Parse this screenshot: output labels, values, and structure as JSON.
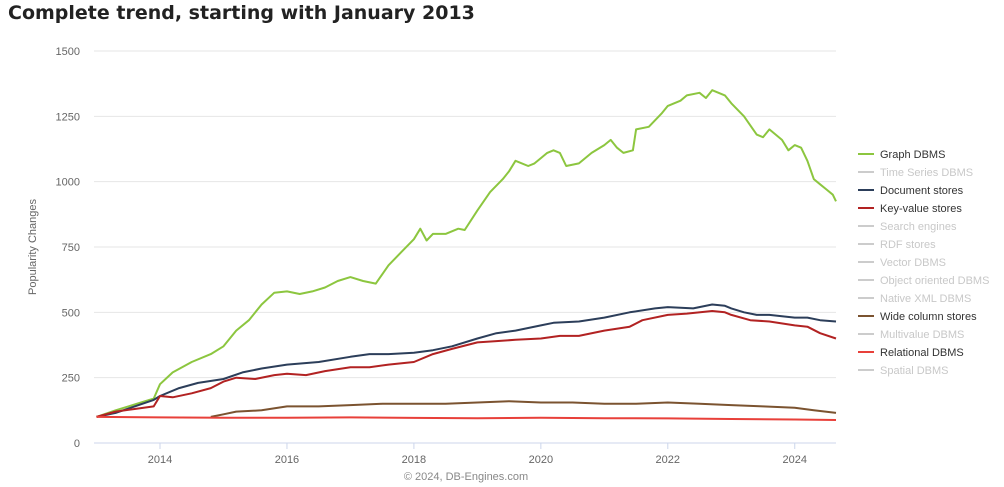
{
  "chart_data": {
    "type": "line",
    "title": "Complete trend, starting with January 2013",
    "ylabel": "Popularity Changes",
    "credit": "© 2024, DB-Engines.com",
    "ylim": [
      0,
      1500
    ],
    "xlim": [
      2012.96,
      2024.65
    ],
    "y_ticks": [
      0,
      250,
      500,
      750,
      1000,
      1250,
      1500
    ],
    "x_ticks": [
      2014,
      2016,
      2018,
      2020,
      2022,
      2024
    ],
    "grid": "horizontal",
    "legend_position": "right",
    "legend": [
      {
        "name": "Graph DBMS",
        "active": true,
        "color": "#8cc63f"
      },
      {
        "name": "Time Series DBMS",
        "active": false,
        "color": "#cccccc"
      },
      {
        "name": "Document stores",
        "active": true,
        "color": "#2c3e5a"
      },
      {
        "name": "Key-value stores",
        "active": true,
        "color": "#b22222"
      },
      {
        "name": "Search engines",
        "active": false,
        "color": "#cccccc"
      },
      {
        "name": "RDF stores",
        "active": false,
        "color": "#cccccc"
      },
      {
        "name": "Vector DBMS",
        "active": false,
        "color": "#cccccc"
      },
      {
        "name": "Object oriented DBMS",
        "active": false,
        "color": "#cccccc"
      },
      {
        "name": "Native XML DBMS",
        "active": false,
        "color": "#cccccc"
      },
      {
        "name": "Wide column stores",
        "active": true,
        "color": "#7b5330"
      },
      {
        "name": "Multivalue DBMS",
        "active": false,
        "color": "#cccccc"
      },
      {
        "name": "Relational DBMS",
        "active": true,
        "color": "#e8403a"
      },
      {
        "name": "Spatial DBMS",
        "active": false,
        "color": "#cccccc"
      }
    ],
    "series": [
      {
        "name": "Graph DBMS",
        "color": "#8cc63f",
        "points": [
          [
            2013.0,
            100
          ],
          [
            2013.3,
            125
          ],
          [
            2013.5,
            140
          ],
          [
            2013.7,
            155
          ],
          [
            2013.9,
            170
          ],
          [
            2014.0,
            225
          ],
          [
            2014.2,
            270
          ],
          [
            2014.5,
            310
          ],
          [
            2014.8,
            340
          ],
          [
            2015.0,
            370
          ],
          [
            2015.2,
            430
          ],
          [
            2015.4,
            470
          ],
          [
            2015.6,
            530
          ],
          [
            2015.8,
            575
          ],
          [
            2016.0,
            580
          ],
          [
            2016.2,
            570
          ],
          [
            2016.4,
            580
          ],
          [
            2016.6,
            595
          ],
          [
            2016.8,
            620
          ],
          [
            2017.0,
            635
          ],
          [
            2017.2,
            620
          ],
          [
            2017.4,
            610
          ],
          [
            2017.6,
            680
          ],
          [
            2017.8,
            730
          ],
          [
            2018.0,
            780
          ],
          [
            2018.1,
            820
          ],
          [
            2018.2,
            775
          ],
          [
            2018.3,
            800
          ],
          [
            2018.5,
            800
          ],
          [
            2018.7,
            820
          ],
          [
            2018.8,
            815
          ],
          [
            2019.0,
            890
          ],
          [
            2019.2,
            960
          ],
          [
            2019.4,
            1010
          ],
          [
            2019.5,
            1040
          ],
          [
            2019.6,
            1080
          ],
          [
            2019.8,
            1060
          ],
          [
            2019.9,
            1070
          ],
          [
            2020.0,
            1090
          ],
          [
            2020.1,
            1110
          ],
          [
            2020.2,
            1120
          ],
          [
            2020.3,
            1110
          ],
          [
            2020.4,
            1060
          ],
          [
            2020.6,
            1070
          ],
          [
            2020.8,
            1110
          ],
          [
            2021.0,
            1140
          ],
          [
            2021.1,
            1160
          ],
          [
            2021.2,
            1130
          ],
          [
            2021.3,
            1110
          ],
          [
            2021.45,
            1120
          ],
          [
            2021.5,
            1200
          ],
          [
            2021.7,
            1210
          ],
          [
            2021.9,
            1260
          ],
          [
            2022.0,
            1290
          ],
          [
            2022.2,
            1310
          ],
          [
            2022.3,
            1330
          ],
          [
            2022.5,
            1340
          ],
          [
            2022.6,
            1320
          ],
          [
            2022.7,
            1350
          ],
          [
            2022.9,
            1330
          ],
          [
            2023.0,
            1300
          ],
          [
            2023.2,
            1250
          ],
          [
            2023.4,
            1180
          ],
          [
            2023.5,
            1170
          ],
          [
            2023.6,
            1200
          ],
          [
            2023.7,
            1180
          ],
          [
            2023.8,
            1160
          ],
          [
            2023.9,
            1120
          ],
          [
            2024.0,
            1140
          ],
          [
            2024.1,
            1130
          ],
          [
            2024.2,
            1080
          ],
          [
            2024.3,
            1010
          ],
          [
            2024.4,
            990
          ],
          [
            2024.5,
            970
          ],
          [
            2024.6,
            950
          ],
          [
            2024.65,
            925
          ]
        ]
      },
      {
        "name": "Document stores",
        "color": "#2c3e5a",
        "points": [
          [
            2013.0,
            100
          ],
          [
            2013.3,
            115
          ],
          [
            2013.6,
            140
          ],
          [
            2013.9,
            165
          ],
          [
            2014.0,
            180
          ],
          [
            2014.3,
            210
          ],
          [
            2014.6,
            230
          ],
          [
            2015.0,
            245
          ],
          [
            2015.3,
            270
          ],
          [
            2015.6,
            285
          ],
          [
            2016.0,
            300
          ],
          [
            2016.5,
            310
          ],
          [
            2017.0,
            330
          ],
          [
            2017.3,
            340
          ],
          [
            2017.6,
            340
          ],
          [
            2018.0,
            345
          ],
          [
            2018.3,
            355
          ],
          [
            2018.6,
            370
          ],
          [
            2019.0,
            400
          ],
          [
            2019.3,
            420
          ],
          [
            2019.6,
            430
          ],
          [
            2020.0,
            450
          ],
          [
            2020.2,
            460
          ],
          [
            2020.6,
            465
          ],
          [
            2021.0,
            480
          ],
          [
            2021.4,
            500
          ],
          [
            2021.8,
            515
          ],
          [
            2022.0,
            520
          ],
          [
            2022.4,
            515
          ],
          [
            2022.7,
            530
          ],
          [
            2022.9,
            525
          ],
          [
            2023.0,
            515
          ],
          [
            2023.2,
            500
          ],
          [
            2023.4,
            490
          ],
          [
            2023.6,
            490
          ],
          [
            2023.8,
            485
          ],
          [
            2024.0,
            480
          ],
          [
            2024.2,
            480
          ],
          [
            2024.4,
            470
          ],
          [
            2024.65,
            465
          ]
        ]
      },
      {
        "name": "Key-value stores",
        "color": "#b22222",
        "points": [
          [
            2013.0,
            100
          ],
          [
            2013.3,
            120
          ],
          [
            2013.6,
            130
          ],
          [
            2013.9,
            140
          ],
          [
            2014.0,
            180
          ],
          [
            2014.2,
            175
          ],
          [
            2014.5,
            190
          ],
          [
            2014.8,
            210
          ],
          [
            2015.0,
            235
          ],
          [
            2015.2,
            250
          ],
          [
            2015.5,
            245
          ],
          [
            2015.8,
            260
          ],
          [
            2016.0,
            265
          ],
          [
            2016.3,
            260
          ],
          [
            2016.6,
            275
          ],
          [
            2017.0,
            290
          ],
          [
            2017.3,
            290
          ],
          [
            2017.6,
            300
          ],
          [
            2018.0,
            310
          ],
          [
            2018.3,
            340
          ],
          [
            2018.6,
            360
          ],
          [
            2019.0,
            385
          ],
          [
            2019.3,
            390
          ],
          [
            2019.6,
            395
          ],
          [
            2020.0,
            400
          ],
          [
            2020.3,
            410
          ],
          [
            2020.6,
            410
          ],
          [
            2021.0,
            430
          ],
          [
            2021.4,
            445
          ],
          [
            2021.6,
            470
          ],
          [
            2022.0,
            490
          ],
          [
            2022.3,
            495
          ],
          [
            2022.7,
            505
          ],
          [
            2022.9,
            500
          ],
          [
            2023.0,
            490
          ],
          [
            2023.3,
            470
          ],
          [
            2023.6,
            465
          ],
          [
            2024.0,
            450
          ],
          [
            2024.2,
            445
          ],
          [
            2024.4,
            420
          ],
          [
            2024.65,
            400
          ]
        ]
      },
      {
        "name": "Wide column stores",
        "color": "#7b5330",
        "points": [
          [
            2014.8,
            100
          ],
          [
            2015.0,
            110
          ],
          [
            2015.2,
            120
          ],
          [
            2015.6,
            125
          ],
          [
            2016.0,
            140
          ],
          [
            2016.5,
            140
          ],
          [
            2017.0,
            145
          ],
          [
            2017.5,
            150
          ],
          [
            2018.0,
            150
          ],
          [
            2018.5,
            150
          ],
          [
            2019.0,
            155
          ],
          [
            2019.5,
            160
          ],
          [
            2020.0,
            155
          ],
          [
            2020.5,
            155
          ],
          [
            2021.0,
            150
          ],
          [
            2021.5,
            150
          ],
          [
            2022.0,
            155
          ],
          [
            2022.5,
            150
          ],
          [
            2023.0,
            145
          ],
          [
            2023.5,
            140
          ],
          [
            2024.0,
            135
          ],
          [
            2024.3,
            125
          ],
          [
            2024.65,
            115
          ]
        ]
      },
      {
        "name": "Relational DBMS",
        "color": "#e8403a",
        "points": [
          [
            2013.0,
            100
          ],
          [
            2014.0,
            98
          ],
          [
            2015.0,
            97
          ],
          [
            2016.0,
            97
          ],
          [
            2017.0,
            98
          ],
          [
            2018.0,
            96
          ],
          [
            2019.0,
            95
          ],
          [
            2020.0,
            97
          ],
          [
            2021.0,
            95
          ],
          [
            2022.0,
            94
          ],
          [
            2023.0,
            92
          ],
          [
            2024.0,
            90
          ],
          [
            2024.65,
            88
          ]
        ]
      }
    ]
  }
}
